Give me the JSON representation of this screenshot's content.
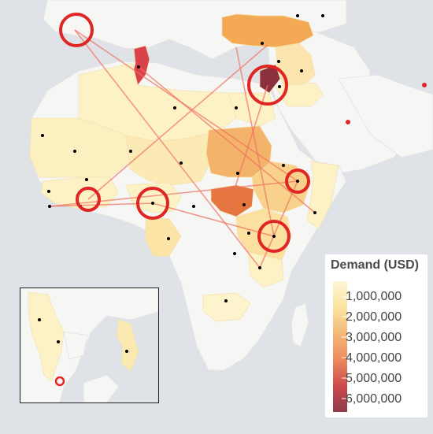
{
  "legend": {
    "title": "Demand (USD)",
    "labels": [
      "1,000,000",
      "2,000,000",
      "3,000,000",
      "4,000,000",
      "5,000,000",
      "6,000,000"
    ],
    "colors": [
      "#fdf6d6",
      "#fae3a0",
      "#f4b877",
      "#ec8a5e",
      "#cc4a4a",
      "#8f3a4d"
    ]
  },
  "colors": {
    "ocean": "#dfe2e6",
    "land": "#f6f6f4",
    "route": "#f07060",
    "ring": "#e02525",
    "point": "#000000"
  }
}
